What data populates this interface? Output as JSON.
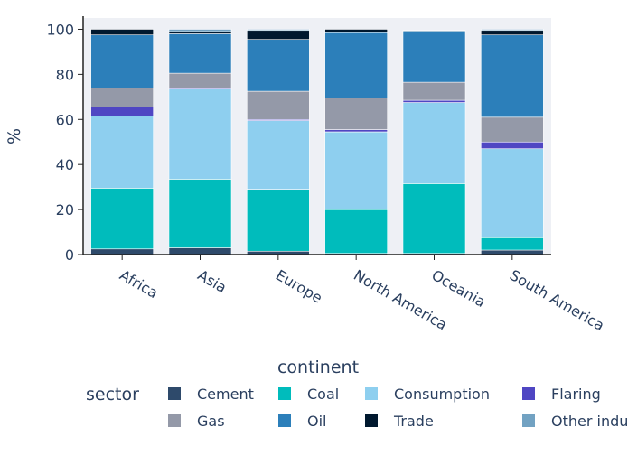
{
  "chart_data": {
    "type": "bar",
    "stacked": true,
    "title": "",
    "xlabel": "continent",
    "ylabel": "%",
    "ylim": [
      0,
      105
    ],
    "yticks": [
      0,
      20,
      40,
      60,
      80,
      100
    ],
    "grid": false,
    "legend_title": "sector",
    "legend_position": "bottom",
    "categories": [
      "Africa",
      "Asia",
      "Europe",
      "North America",
      "Oceania",
      "South America"
    ],
    "series": [
      {
        "name": "Cement",
        "color": "#2e4a6b",
        "values": [
          2.5,
          3,
          1.5,
          0.5,
          0.5,
          2
        ]
      },
      {
        "name": "Coal",
        "color": "#00bcbc",
        "values": [
          27,
          30.5,
          27.5,
          19.5,
          31,
          5.5
        ]
      },
      {
        "name": "Consumption",
        "color": "#8ecfef",
        "values": [
          32,
          40,
          30.5,
          34.5,
          36,
          39.5
        ]
      },
      {
        "name": "Flaring",
        "color": "#4f46c3",
        "values": [
          4,
          0.5,
          0.5,
          1,
          1,
          3
        ]
      },
      {
        "name": "Gas",
        "color": "#9499a8",
        "values": [
          8.5,
          6.5,
          12.5,
          14,
          8,
          11
        ]
      },
      {
        "name": "Oil",
        "color": "#2c7fba",
        "values": [
          23.5,
          17.5,
          23,
          29,
          22.5,
          36.5
        ]
      },
      {
        "name": "Trade",
        "color": "#00182e",
        "values": [
          2.5,
          1,
          4,
          1.5,
          0,
          2
        ]
      },
      {
        "name": "Other industry",
        "color": "#72a2c2",
        "values": [
          0,
          1,
          0.5,
          0,
          0.5,
          0.5
        ]
      }
    ]
  }
}
